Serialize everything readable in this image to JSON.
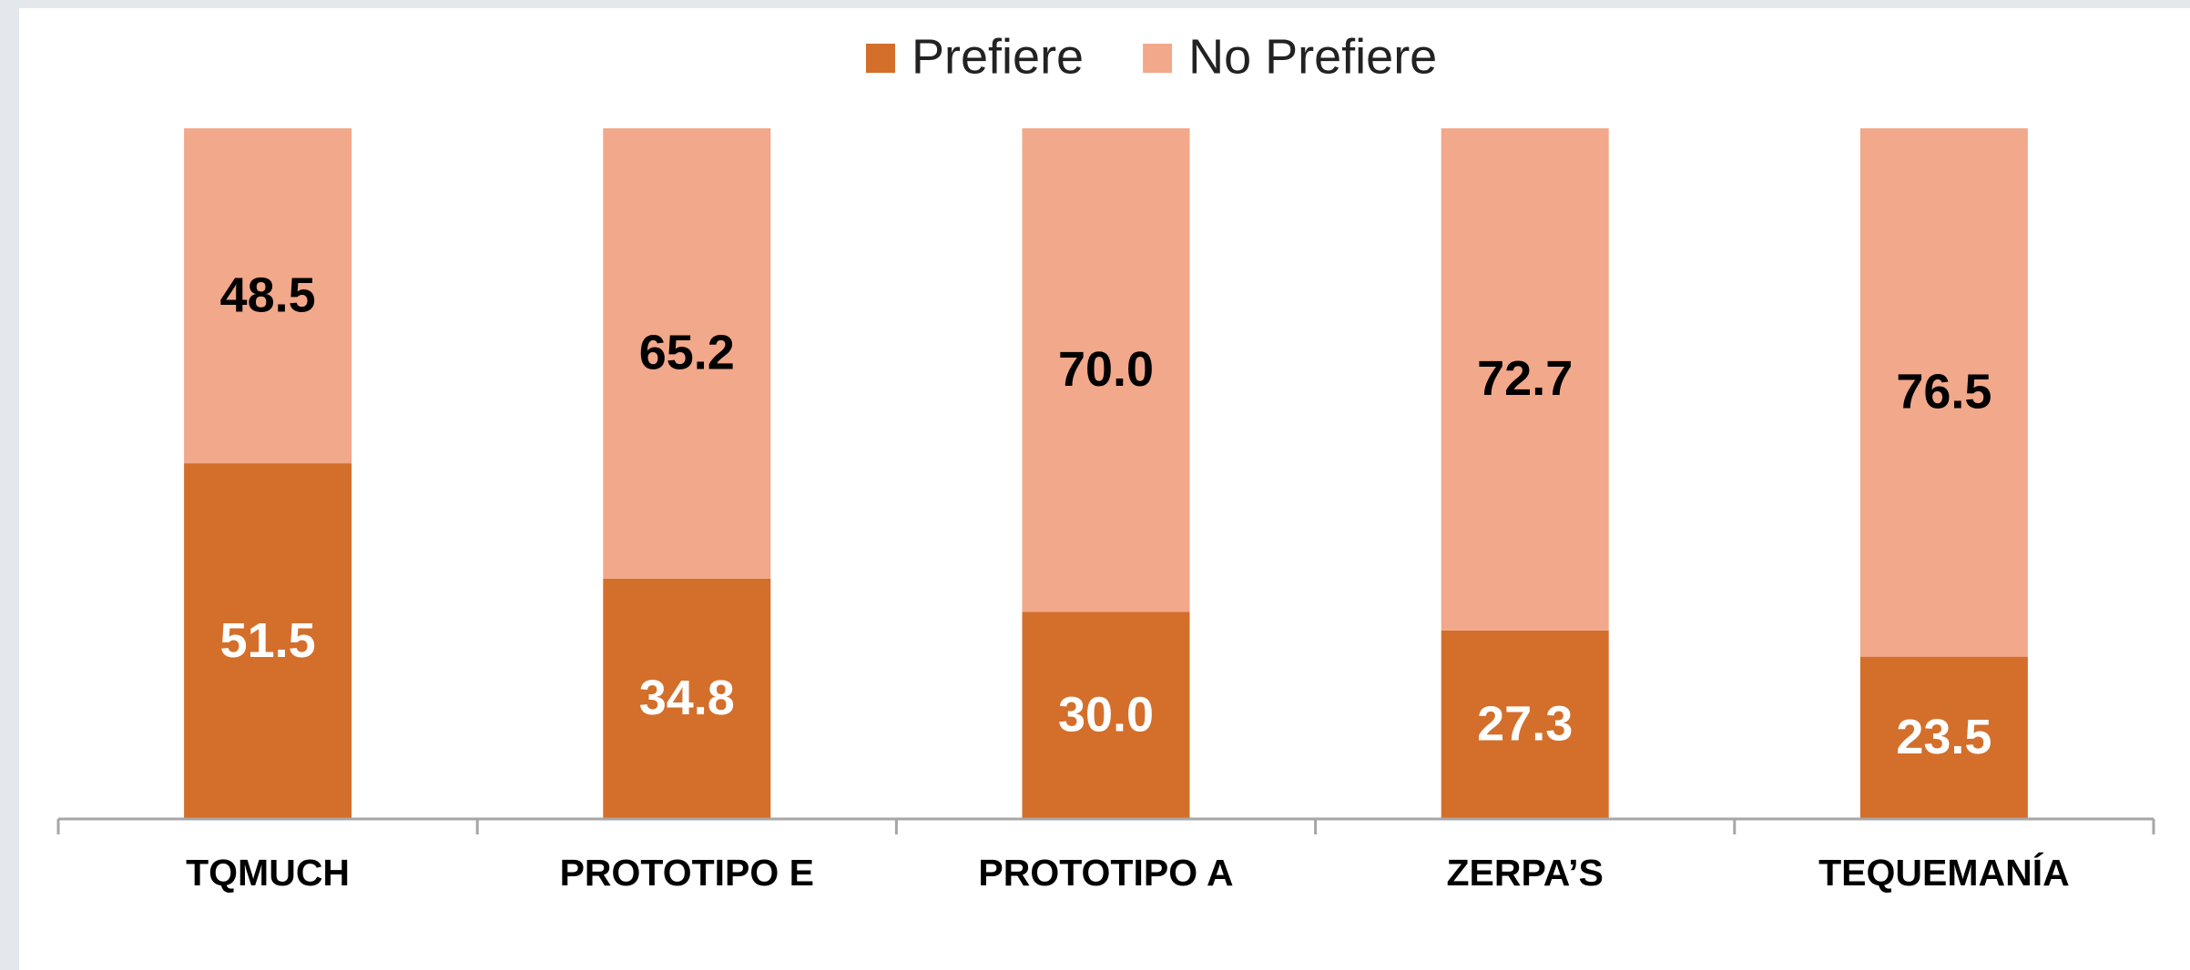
{
  "chart_data": {
    "type": "stacked_bar",
    "categories": [
      "TQMUCH",
      "PROTOTIPO E",
      "PROTOTIPO A",
      "ZERPA’S",
      "TEQUEMANÍA"
    ],
    "series": [
      {
        "name": "Prefiere",
        "color": "#d36f2b",
        "values": [
          51.5,
          34.8,
          30.0,
          27.3,
          23.5
        ],
        "value_labels": [
          "51.5",
          "34.8",
          "30.0",
          "27.3",
          "23.5"
        ],
        "label_color": "#ffffff"
      },
      {
        "name": "No Prefiere",
        "color": "#f2a88a",
        "values": [
          48.5,
          65.2,
          70.0,
          72.7,
          76.5
        ],
        "value_labels": [
          "48.5",
          "65.2",
          "70.0",
          "72.7",
          "76.5"
        ],
        "label_color": "#000000"
      }
    ],
    "ylim": [
      0,
      100
    ],
    "legend": "top"
  }
}
